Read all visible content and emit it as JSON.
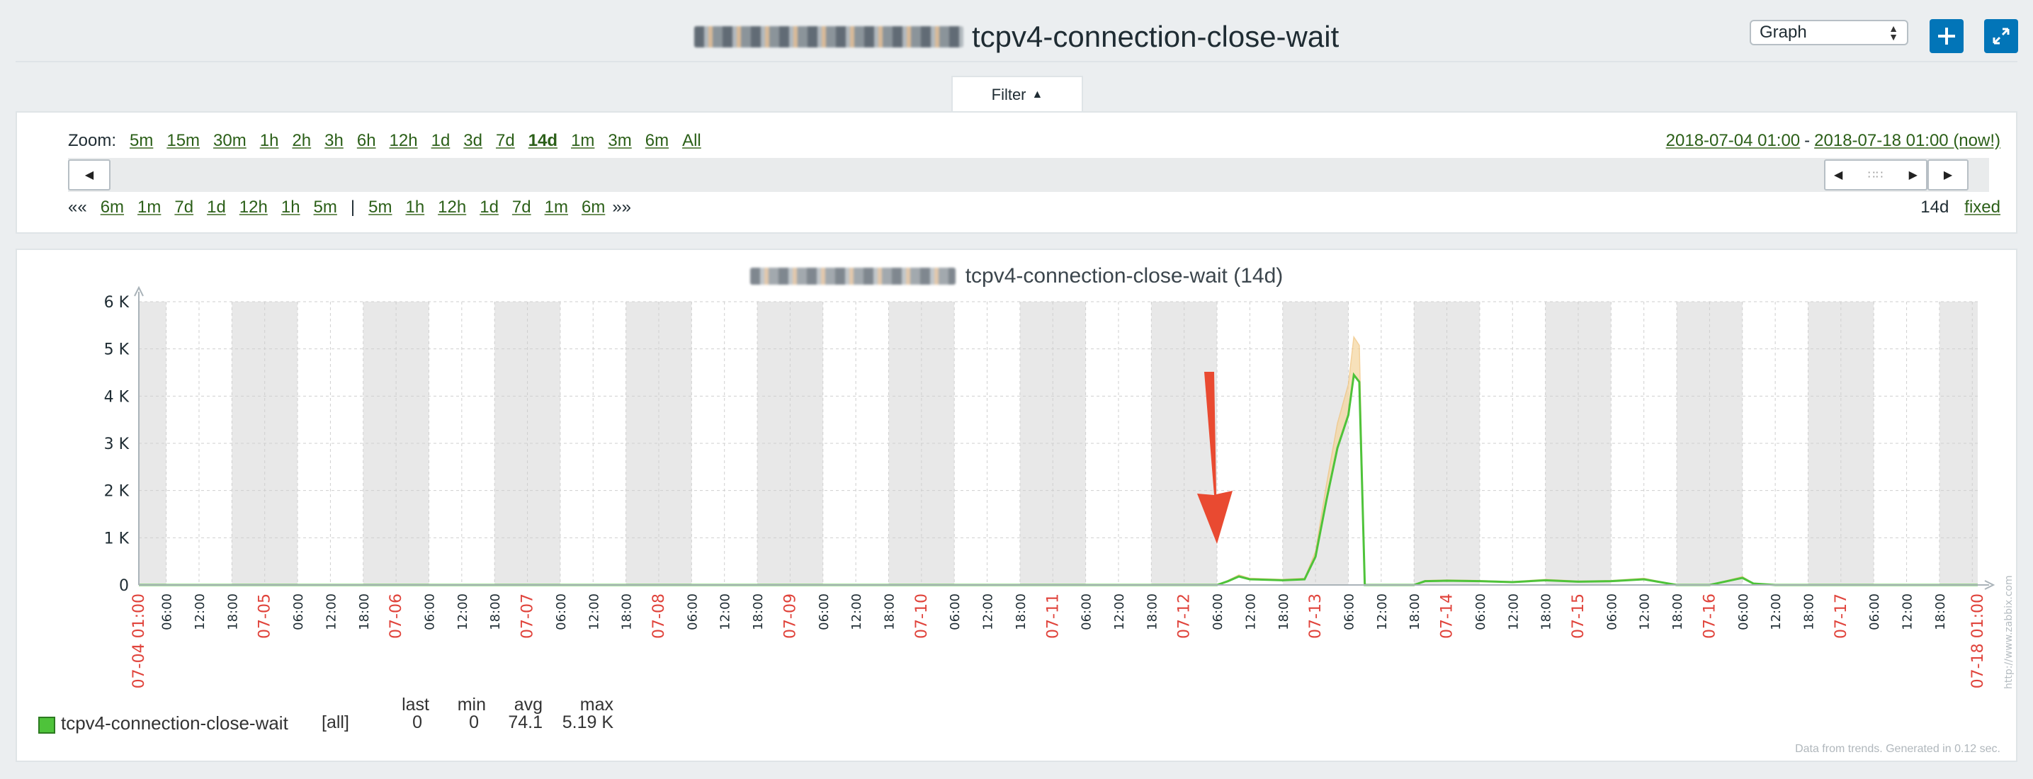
{
  "header": {
    "title": "tcpv4-connection-close-wait",
    "view_select_value": "Graph",
    "add_icon": "plus-icon",
    "fullscreen_icon": "fullscreen-icon"
  },
  "filter": {
    "tab_label": "Filter",
    "zoom_label": "Zoom:",
    "zoom_options": [
      "5m",
      "15m",
      "30m",
      "1h",
      "2h",
      "3h",
      "6h",
      "12h",
      "1d",
      "3d",
      "7d",
      "14d",
      "1m",
      "3m",
      "6m",
      "All"
    ],
    "selected_zoom": "14d",
    "range_from": "2018-07-04 01:00",
    "range_sep": "-",
    "range_to": "2018-07-18 01:00 (now!)",
    "back_marker": "«« ",
    "back_options": [
      "6m",
      "1m",
      "7d",
      "1d",
      "12h",
      "1h",
      "5m"
    ],
    "divider": "|",
    "forward_options": [
      "5m",
      "1h",
      "12h",
      "1d",
      "7d",
      "1m",
      "6m"
    ],
    "forward_marker": " »»",
    "period_value": "14d",
    "period_mode": "fixed"
  },
  "graph": {
    "title": "tcpv4-connection-close-wait (14d)",
    "watermark": "http://www.zabbix.com",
    "footnote": "Data from trends. Generated in 0.12 sec.",
    "legend": {
      "name": "tcpv4-connection-close-wait",
      "func": "[all]",
      "headers": [
        "last",
        "min",
        "avg",
        "max"
      ],
      "values": [
        "0",
        "0",
        "74.1",
        "5.19 K"
      ],
      "color": "#4ec33a"
    }
  },
  "chart_data": {
    "type": "line",
    "title": "tcpv4-connection-close-wait (14d)",
    "ylim": [
      0,
      6000
    ],
    "ytick_labels": [
      "0",
      "1 K",
      "2 K",
      "3 K",
      "4 K",
      "5 K",
      "6 K"
    ],
    "xlim": [
      "2018-07-04 01:00",
      "2018-07-18 01:00"
    ],
    "x_start_label": "07-04 01:00",
    "x_end_label": "07-18 01:00",
    "day_labels": [
      "07-05",
      "07-06",
      "07-07",
      "07-08",
      "07-09",
      "07-10",
      "07-11",
      "07-12",
      "07-13",
      "07-14",
      "07-15",
      "07-16",
      "07-17"
    ],
    "hour_labels": [
      "06:00",
      "12:00",
      "18:00"
    ],
    "grid": true,
    "series": [
      {
        "name": "tcpv4-connection-close-wait",
        "color": "#4ec33a",
        "x": [
          "2018-07-04 01:00",
          "2018-07-12 06:00",
          "2018-07-12 08:00",
          "2018-07-12 10:00",
          "2018-07-12 12:00",
          "2018-07-12 18:00",
          "2018-07-12 22:00",
          "2018-07-13 00:00",
          "2018-07-13 02:00",
          "2018-07-13 04:00",
          "2018-07-13 06:00",
          "2018-07-13 07:00",
          "2018-07-13 08:00",
          "2018-07-13 09:00",
          "2018-07-13 10:00",
          "2018-07-13 18:00",
          "2018-07-13 20:00",
          "2018-07-14 00:00",
          "2018-07-14 06:00",
          "2018-07-14 12:00",
          "2018-07-14 18:00",
          "2018-07-15 00:00",
          "2018-07-15 06:00",
          "2018-07-15 12:00",
          "2018-07-15 15:00",
          "2018-07-15 18:00",
          "2018-07-16 00:00",
          "2018-07-16 04:00",
          "2018-07-16 06:00",
          "2018-07-16 08:00",
          "2018-07-16 12:00",
          "2018-07-18 01:00"
        ],
        "y": [
          0,
          0,
          80,
          180,
          120,
          100,
          120,
          600,
          1800,
          2900,
          3600,
          4450,
          4300,
          0,
          0,
          0,
          80,
          90,
          80,
          60,
          100,
          70,
          80,
          120,
          60,
          0,
          0,
          100,
          150,
          30,
          0,
          0
        ]
      }
    ]
  }
}
